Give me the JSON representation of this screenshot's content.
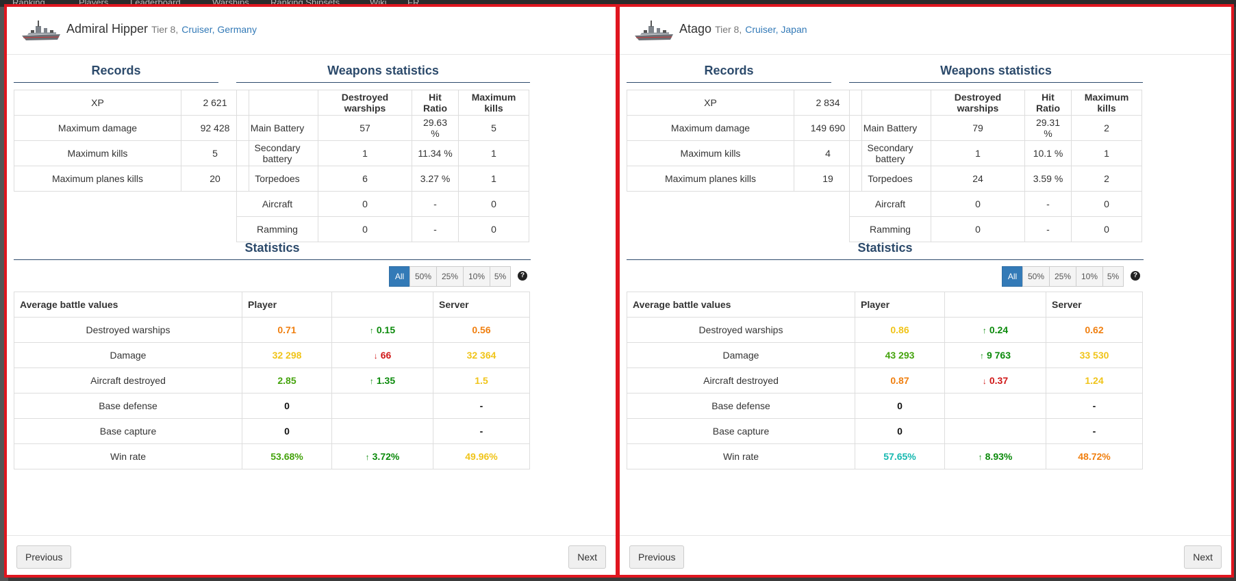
{
  "background_tabs": [
    "Ranking",
    "Players",
    "Leaderboard",
    "Warships",
    "Ranking Shipsets",
    "Wiki",
    "FR"
  ],
  "panels": [
    {
      "ship_name": "Admiral Hipper",
      "tier": "Tier 8,",
      "ship_class": "Cruiser",
      "nation": "Germany",
      "records_title": "Records",
      "records": [
        {
          "label": "XP",
          "value": "2 621"
        },
        {
          "label": "Maximum damage",
          "value": "92 428"
        },
        {
          "label": "Maximum kills",
          "value": "5"
        },
        {
          "label": "Maximum planes kills",
          "value": "20"
        }
      ],
      "weapons_title": "Weapons statistics",
      "weapons_headers": [
        "",
        "Destroyed warships",
        "Hit Ratio",
        "Maximum kills"
      ],
      "weapons": [
        {
          "name": "Main Battery",
          "destroyed": "57",
          "hit": "29.63 %",
          "max": "5"
        },
        {
          "name": "Secondary battery",
          "destroyed": "1",
          "hit": "11.34 %",
          "max": "1"
        },
        {
          "name": "Torpedoes",
          "destroyed": "6",
          "hit": "3.27 %",
          "max": "1"
        },
        {
          "name": "Aircraft",
          "destroyed": "0",
          "hit": "-",
          "max": "0"
        },
        {
          "name": "Ramming",
          "destroyed": "0",
          "hit": "-",
          "max": "0"
        }
      ],
      "stats_title": "Statistics",
      "filters": [
        "All",
        "50%",
        "25%",
        "10%",
        "5%"
      ],
      "active_filter": "All",
      "stats_headers": [
        "Average battle values",
        "Player",
        "",
        "Server"
      ],
      "stats": [
        {
          "label": "Destroyed warships",
          "player": "0.71",
          "player_color": "#f07f0f",
          "diff": "0.15",
          "diff_dir": "up",
          "server": "0.56",
          "server_color": "#f07f0f"
        },
        {
          "label": "Damage",
          "player": "32 298",
          "player_color": "#f0c419",
          "diff": "66",
          "diff_dir": "down",
          "server": "32 364",
          "server_color": "#f0c419"
        },
        {
          "label": "Aircraft destroyed",
          "player": "2.85",
          "player_color": "#44a30c",
          "diff": "1.35",
          "diff_dir": "up",
          "server": "1.5",
          "server_color": "#f0c419"
        },
        {
          "label": "Base defense",
          "player": "0",
          "player_color": "#111111",
          "diff": "",
          "diff_dir": "",
          "server": "-",
          "server_color": "#111111"
        },
        {
          "label": "Base capture",
          "player": "0",
          "player_color": "#111111",
          "diff": "",
          "diff_dir": "",
          "server": "-",
          "server_color": "#111111"
        },
        {
          "label": "Win rate",
          "player": "53.68%",
          "player_color": "#44a30c",
          "diff": "3.72%",
          "diff_dir": "up",
          "server": "49.96%",
          "server_color": "#f0c419"
        }
      ],
      "prev_label": "Previous",
      "next_label": "Next"
    },
    {
      "ship_name": "Atago",
      "tier": "Tier 8,",
      "ship_class": "Cruiser",
      "nation": "Japan",
      "records_title": "Records",
      "records": [
        {
          "label": "XP",
          "value": "2 834"
        },
        {
          "label": "Maximum damage",
          "value": "149 690"
        },
        {
          "label": "Maximum kills",
          "value": "4"
        },
        {
          "label": "Maximum planes kills",
          "value": "19"
        }
      ],
      "weapons_title": "Weapons statistics",
      "weapons_headers": [
        "",
        "Destroyed warships",
        "Hit Ratio",
        "Maximum kills"
      ],
      "weapons": [
        {
          "name": "Main Battery",
          "destroyed": "79",
          "hit": "29.31 %",
          "max": "2"
        },
        {
          "name": "Secondary battery",
          "destroyed": "1",
          "hit": "10.1 %",
          "max": "1"
        },
        {
          "name": "Torpedoes",
          "destroyed": "24",
          "hit": "3.59 %",
          "max": "2"
        },
        {
          "name": "Aircraft",
          "destroyed": "0",
          "hit": "-",
          "max": "0"
        },
        {
          "name": "Ramming",
          "destroyed": "0",
          "hit": "-",
          "max": "0"
        }
      ],
      "stats_title": "Statistics",
      "filters": [
        "All",
        "50%",
        "25%",
        "10%",
        "5%"
      ],
      "active_filter": "All",
      "stats_headers": [
        "Average battle values",
        "Player",
        "",
        "Server"
      ],
      "stats": [
        {
          "label": "Destroyed warships",
          "player": "0.86",
          "player_color": "#f0c419",
          "diff": "0.24",
          "diff_dir": "up",
          "server": "0.62",
          "server_color": "#f07f0f"
        },
        {
          "label": "Damage",
          "player": "43 293",
          "player_color": "#44a30c",
          "diff": "9 763",
          "diff_dir": "up",
          "server": "33 530",
          "server_color": "#f0c419"
        },
        {
          "label": "Aircraft destroyed",
          "player": "0.87",
          "player_color": "#f07f0f",
          "diff": "0.37",
          "diff_dir": "down",
          "server": "1.24",
          "server_color": "#f0c419"
        },
        {
          "label": "Base defense",
          "player": "0",
          "player_color": "#111111",
          "diff": "",
          "diff_dir": "",
          "server": "-",
          "server_color": "#111111"
        },
        {
          "label": "Base capture",
          "player": "0",
          "player_color": "#111111",
          "diff": "",
          "diff_dir": "",
          "server": "-",
          "server_color": "#111111"
        },
        {
          "label": "Win rate",
          "player": "57.65%",
          "player_color": "#16b8b0",
          "diff": "8.93%",
          "diff_dir": "up",
          "server": "48.72%",
          "server_color": "#f07f0f"
        }
      ],
      "prev_label": "Previous",
      "next_label": "Next"
    }
  ]
}
